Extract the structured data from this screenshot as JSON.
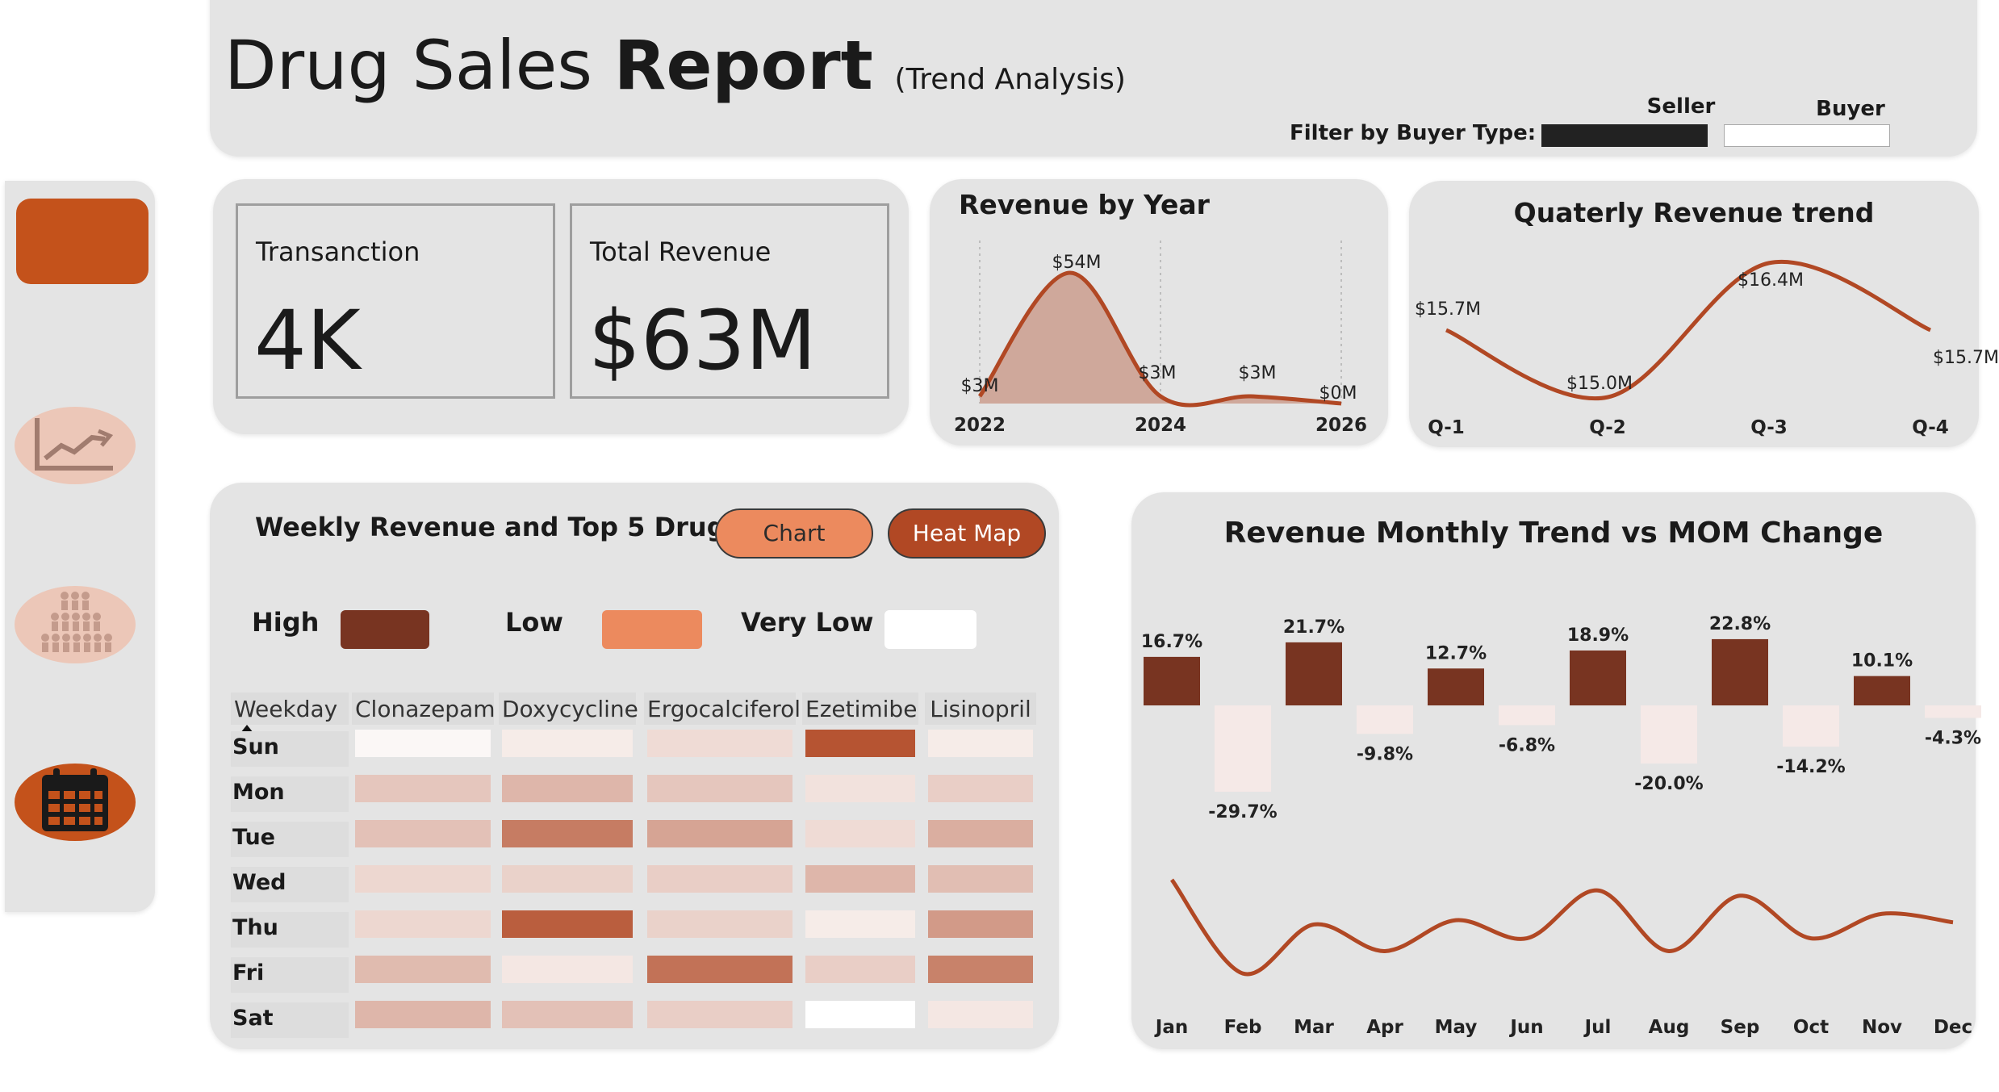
{
  "header": {
    "title_regular": "Drug Sales ",
    "title_bold": "Report",
    "title_sub": "(Trend Analysis)",
    "filter_label": "Filter by Buyer Type:",
    "filter_options": [
      {
        "label": "Seller",
        "selected": true,
        "color": "#222222"
      },
      {
        "label": "Buyer",
        "selected": false,
        "color": "#ffffff"
      }
    ]
  },
  "nav": {
    "items": [
      {
        "icon": "home-tile-icon",
        "active": true
      },
      {
        "icon": "trend-chart-icon",
        "active": false
      },
      {
        "icon": "people-group-icon",
        "active": false
      },
      {
        "icon": "calendar-icon",
        "active": true
      }
    ]
  },
  "kpis": [
    {
      "label": "Transanction",
      "value": "4K"
    },
    {
      "label": "Total Revenue",
      "value": "$63M"
    }
  ],
  "colors": {
    "accent": "#b14824",
    "high": "#783421",
    "low": "#ec8a5e",
    "very_low": "#ffffff",
    "panel": "#e4e4e4"
  },
  "weekly": {
    "title": "Weekly Revenue and Top 5 Drug",
    "buttons": {
      "chart": "Chart",
      "heatmap": "Heat Map"
    },
    "legend": {
      "high": "High",
      "low": "Low",
      "very_low": "Very Low"
    }
  },
  "chart_data": [
    {
      "type": "area",
      "title": "Revenue by Year",
      "x_ticks": [
        "2022",
        "2024",
        "2026"
      ],
      "points": [
        {
          "x": 2022,
          "y": 3,
          "label": "$3M"
        },
        {
          "x": 2023,
          "y": 54,
          "label": "$54M"
        },
        {
          "x": 2024,
          "y": 3,
          "label": "$3M"
        },
        {
          "x": 2025,
          "y": 3,
          "label": "$3M"
        },
        {
          "x": 2026,
          "y": 0,
          "label": "$0M"
        }
      ],
      "ylim": [
        0,
        60
      ],
      "grid": "vertical dotted",
      "color": "#b14824"
    },
    {
      "type": "line",
      "title": "Quaterly Revenue trend",
      "categories": [
        "Q-1",
        "Q-2",
        "Q-3",
        "Q-4"
      ],
      "values": [
        15.7,
        15.0,
        16.4,
        15.7
      ],
      "labels": [
        "$15.7M",
        "$15.0M",
        "$16.4M",
        "$15.7M"
      ],
      "color": "#b14824"
    },
    {
      "type": "heatmap",
      "rows": [
        "Sun",
        "Mon",
        "Tue",
        "Wed",
        "Thu",
        "Fri",
        "Sat"
      ],
      "columns": [
        "Clonazepam",
        "Doxycycline",
        "Ergocalciferol",
        "Ezetimibe",
        "Lisinopril"
      ],
      "corner_label": "Weekday",
      "values": [
        [
          0.05,
          0.12,
          0.22,
          0.95,
          0.12
        ],
        [
          0.35,
          0.45,
          0.35,
          0.18,
          0.3
        ],
        [
          0.38,
          0.75,
          0.55,
          0.22,
          0.5
        ],
        [
          0.25,
          0.28,
          0.3,
          0.45,
          0.4
        ],
        [
          0.25,
          0.9,
          0.28,
          0.12,
          0.6
        ],
        [
          0.42,
          0.15,
          0.8,
          0.3,
          0.72
        ],
        [
          0.45,
          0.38,
          0.3,
          0.0,
          0.15
        ]
      ]
    },
    {
      "type": "bar",
      "title": "Revenue Monthly Trend vs MOM Change",
      "categories": [
        "Jan",
        "Feb",
        "Mar",
        "Apr",
        "May",
        "Jun",
        "Jul",
        "Aug",
        "Sep",
        "Oct",
        "Nov",
        "Dec"
      ],
      "values": [
        16.7,
        -29.7,
        21.7,
        -9.8,
        12.7,
        -6.8,
        18.9,
        -20.0,
        22.8,
        -14.2,
        10.1,
        -4.3
      ],
      "labels": [
        "16.7%",
        "-29.7%",
        "21.7%",
        "-9.8%",
        "12.7%",
        "-6.8%",
        "18.9%",
        "-20.0%",
        "22.8%",
        "-14.2%",
        "10.1%",
        "-4.3%"
      ],
      "positive_color": "#783421",
      "negative_color": "#f5e9e7",
      "trend_line": [
        0.0,
        0.88,
        0.42,
        0.67,
        0.38,
        0.55,
        0.1,
        0.67,
        0.15,
        0.55,
        0.32,
        0.4
      ],
      "trend_color": "#b14824"
    }
  ]
}
